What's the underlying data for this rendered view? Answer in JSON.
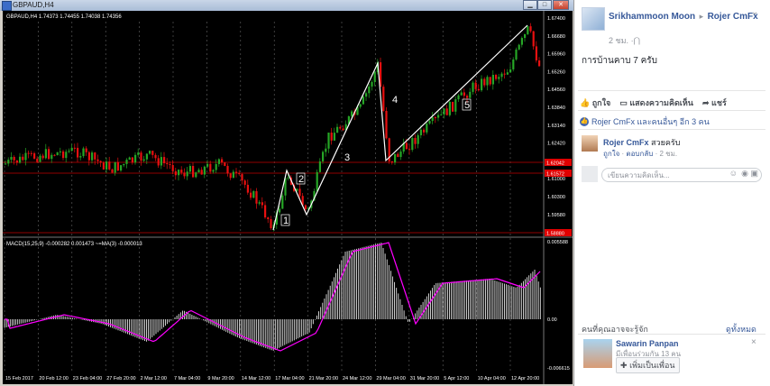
{
  "window": {
    "title": "GBPAUD,H4",
    "buttons": {
      "minimize": "▁",
      "maximize": "□",
      "close": "✕"
    }
  },
  "chart": {
    "header": "GBPAUD,H4  1.74373 1.74455 1.74038 1.74356",
    "macd_label": "MACD(15,25,9) -0.000282 0.001473 ~=MA(3) -0.000013",
    "price_axis": [
      "1.67400",
      "1.66680",
      "1.65960",
      "1.65260",
      "1.64560",
      "1.63840",
      "1.63140",
      "1.62420",
      "1.61700",
      "1.61000",
      "1.60300",
      "1.59580",
      "1.58880"
    ],
    "price_tags": [
      {
        "label": "1.62042",
        "color": "#e00000"
      },
      {
        "label": "1.61572",
        "color": "#e00000"
      },
      {
        "label": "1.58880",
        "color": "#e00000"
      }
    ],
    "macd_axis": [
      "0.005588",
      "0.00",
      "-0.006615"
    ],
    "time_axis": [
      "15 Feb 2017",
      "20 Feb 12:00",
      "23 Feb 04:00",
      "27 Feb 20:00",
      "2 Mar 12:00",
      "7 Mar 04:00",
      "9 Mar 20:00",
      "14 Mar 12:00",
      "17 Mar 04:00",
      "21 Mar 20:00",
      "24 Mar 12:00",
      "29 Mar 04:00",
      "31 Mar 20:00",
      "5 Apr 12:00",
      "10 Apr 04:00",
      "12 Apr 20:00"
    ],
    "wave_labels": [
      "1",
      "2",
      "3",
      "4",
      "5"
    ],
    "colors": {
      "bull": "#26a626",
      "bear": "#e81010",
      "hline": "#c00000",
      "macd_hist": "#ffffff",
      "signal": "#ff00ff",
      "wave": "#ffffff"
    }
  },
  "facebook": {
    "post": {
      "author": "Srikhammoon Moon",
      "arrow": "▸",
      "target": "Rojer CmFx",
      "time": "2 ชม.",
      "privacy_icon": "friends-icon",
      "text": "การบ้านคาบ 7 ครับ"
    },
    "actions": {
      "like": "ถูกใจ",
      "comment": "แสดงความคิดเห็น",
      "share": "แชร์"
    },
    "likes_summary": "Rojer CmFx และคนอื่นๆ อีก 3 คน",
    "comment": {
      "author": "Rojer CmFx",
      "text": "สวยครับ",
      "like": "ถูกใจ",
      "reply": "ตอบกลับ",
      "time": "2 ชม."
    },
    "comment_input": {
      "placeholder": "เขียนความคิดเห็น..."
    },
    "pymk": {
      "heading": "คนที่คุณอาจจะรู้จัก",
      "see_all": "ดูทั้งหมด",
      "close": "×",
      "person": {
        "name": "Sawarin Panpan",
        "mutual": "มีเพื่อนร่วมกัน 13 คน",
        "add_button": "เพิ่มเป็นเพื่อน"
      }
    }
  }
}
